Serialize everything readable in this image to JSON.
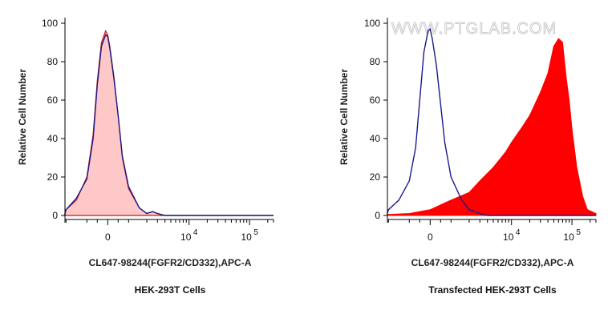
{
  "watermark": "WWW.PTGLAB.COM",
  "colors": {
    "control_fill": "#ffc8c8",
    "control_line": "#d01010",
    "stained": "#ff0000",
    "isotype": "#1a1a8c",
    "axis": "#000000"
  },
  "chart_data": [
    {
      "type": "area",
      "ylabel": "Relative Cell Number",
      "xlabel": "CL647-98244(FGFR2/CD332),APC-A",
      "caption": "HEK-293T Cells",
      "x_scale": "biexponential",
      "xlim": [
        -5000,
        300000
      ],
      "ylim": [
        0,
        100
      ],
      "y_ticks": [
        "0",
        "20",
        "40",
        "60",
        "80",
        "100"
      ],
      "x_ticks": [
        {
          "base": "0",
          "exp": ""
        },
        {
          "base": "10",
          "exp": "4"
        },
        {
          "base": "10",
          "exp": "5"
        }
      ],
      "grid": false,
      "series": [
        {
          "style": "filled",
          "x": [
            -5000,
            -3000,
            -2000,
            -1500,
            -1000,
            -700,
            -500,
            -300,
            -100,
            0,
            100,
            300,
            500,
            700,
            1000,
            1500,
            2000,
            2500,
            3000,
            4000,
            300000
          ],
          "y": [
            0,
            1,
            3,
            8,
            20,
            42,
            70,
            90,
            96,
            94,
            88,
            72,
            52,
            30,
            14,
            4,
            1,
            2,
            1,
            0,
            0
          ]
        },
        {
          "style": "line",
          "x": [
            -5000,
            -3000,
            -2000,
            -1500,
            -1000,
            -700,
            -500,
            -300,
            -100,
            0,
            100,
            300,
            500,
            700,
            1000,
            1500,
            2000,
            2500,
            3000,
            4000,
            300000
          ],
          "y": [
            0,
            1,
            3,
            9,
            19,
            40,
            68,
            88,
            94,
            93,
            87,
            71,
            52,
            31,
            15,
            4,
            1,
            2,
            1,
            0,
            0
          ]
        }
      ]
    },
    {
      "type": "area",
      "ylabel": "Relative Cell Number",
      "xlabel": "CL647-98244(FGFR2/CD332),APC-A",
      "caption": "Transfected HEK-293T Cells",
      "x_scale": "biexponential",
      "xlim": [
        -5000,
        300000
      ],
      "ylim": [
        0,
        100
      ],
      "y_ticks": [
        "0",
        "20",
        "40",
        "60",
        "80",
        "100"
      ],
      "x_ticks": [
        {
          "base": "0",
          "exp": ""
        },
        {
          "base": "10",
          "exp": "4"
        },
        {
          "base": "10",
          "exp": "5"
        }
      ],
      "grid": false,
      "series": [
        {
          "style": "filled",
          "x": [
            -5000,
            -2000,
            -1000,
            0,
            1000,
            2000,
            3000,
            5000,
            8000,
            10000,
            15000,
            20000,
            30000,
            40000,
            50000,
            60000,
            70000,
            80000,
            90000,
            100000,
            120000,
            150000,
            180000,
            250000,
            300000
          ],
          "y": [
            0,
            0.5,
            1,
            3,
            8,
            12,
            18,
            25,
            33,
            38,
            46,
            52,
            64,
            74,
            88,
            92,
            90,
            72,
            60,
            45,
            25,
            10,
            3,
            1,
            0
          ]
        },
        {
          "style": "line",
          "x": [
            -5000,
            -3000,
            -2000,
            -1500,
            -1000,
            -700,
            -500,
            -300,
            -100,
            0,
            100,
            300,
            500,
            700,
            1000,
            1500,
            2000,
            2500,
            3000,
            4000,
            300000
          ],
          "y": [
            0,
            1,
            3,
            8,
            18,
            35,
            60,
            85,
            96,
            97,
            92,
            78,
            58,
            38,
            20,
            8,
            3,
            2,
            1,
            0,
            0
          ]
        }
      ]
    }
  ]
}
